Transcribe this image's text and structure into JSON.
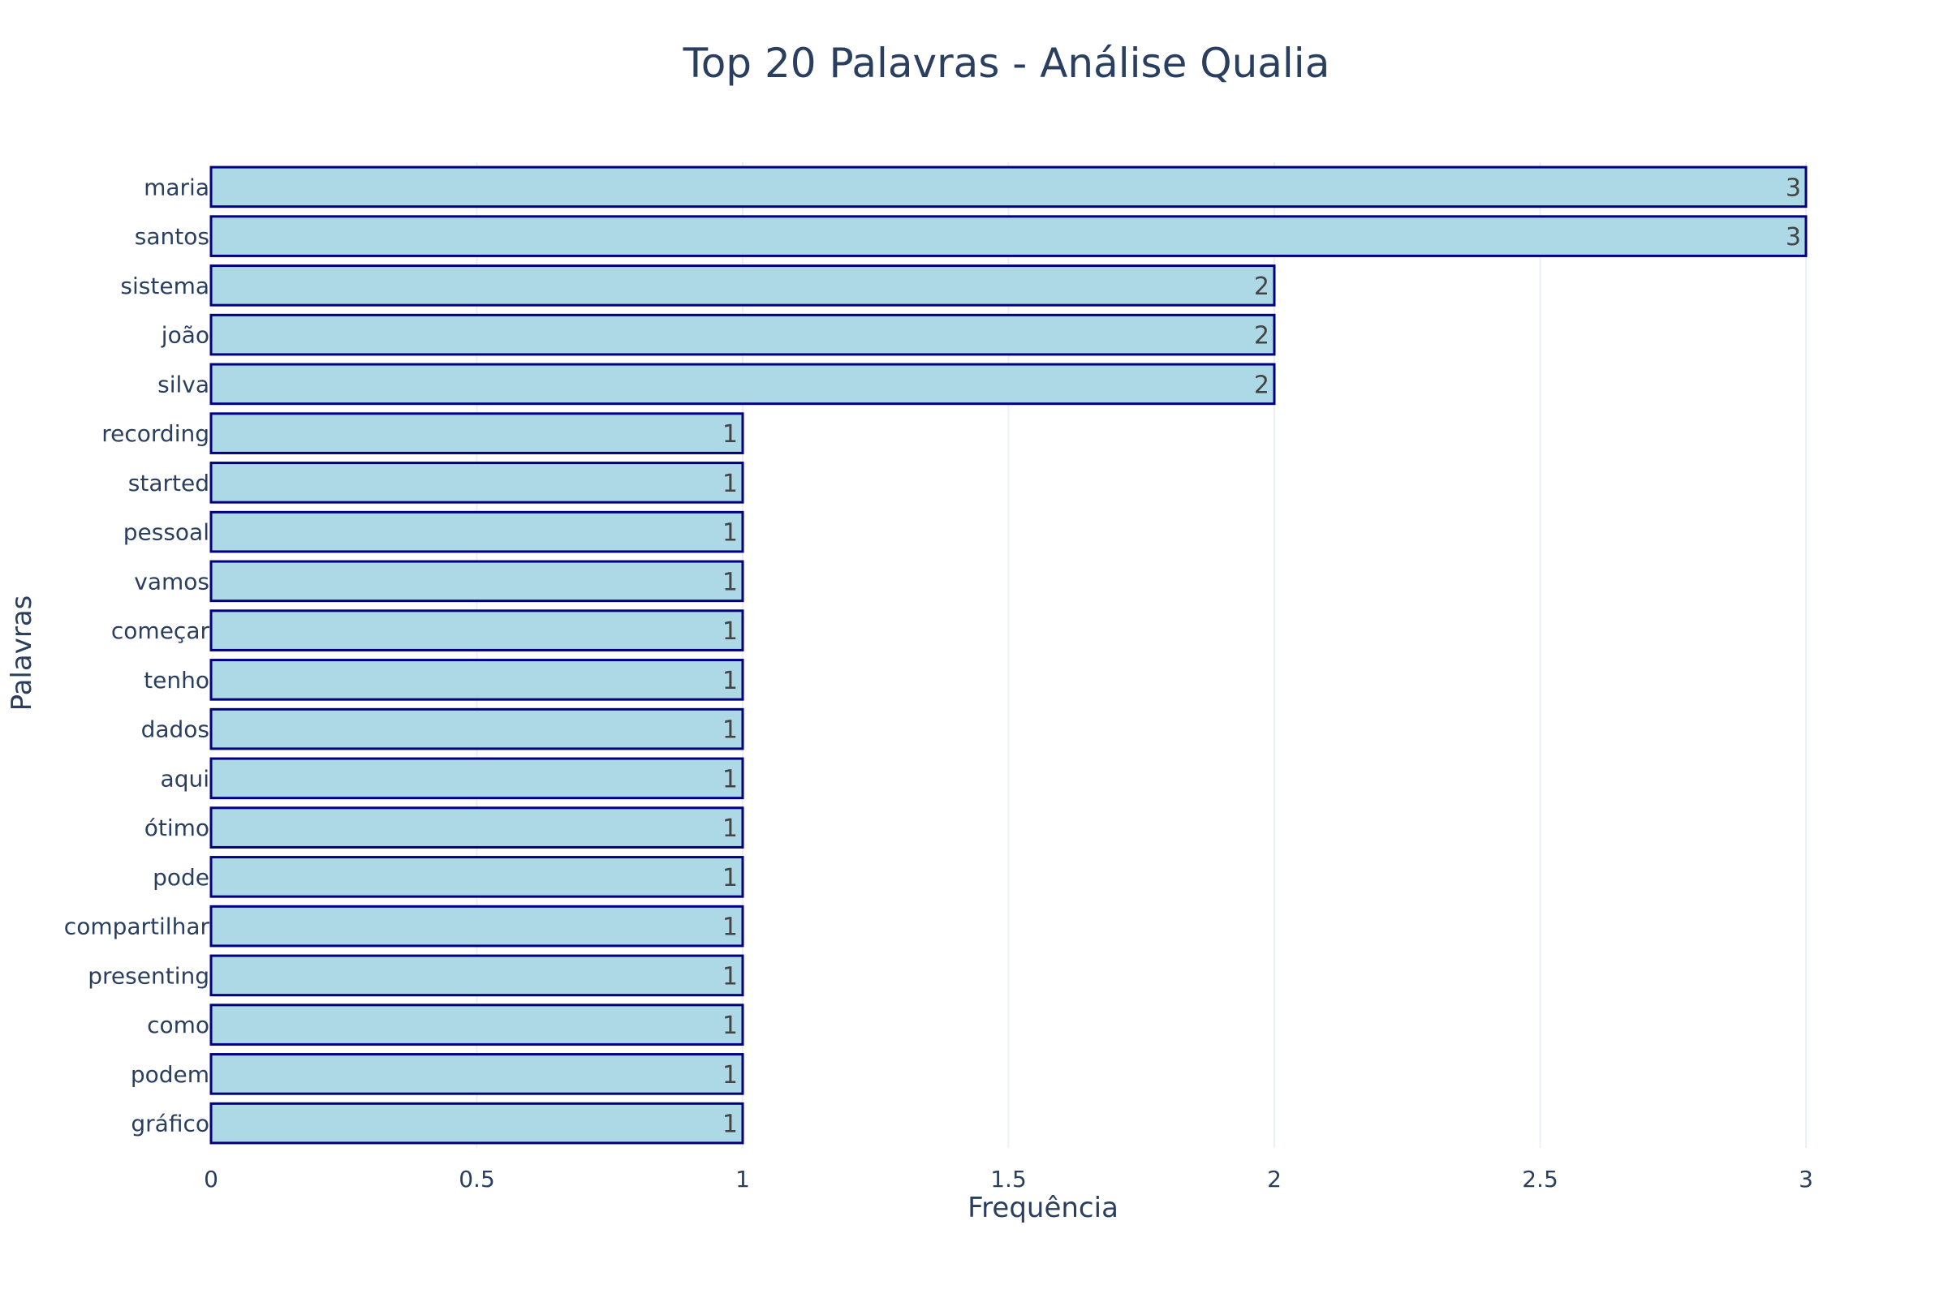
{
  "chart_data": {
    "type": "bar",
    "orientation": "horizontal",
    "title": "Top 20 Palavras - Análise Qualia",
    "xlabel": "Frequência",
    "ylabel": "Palavras",
    "xlim": [
      0,
      3
    ],
    "x_ticks": [
      "0",
      "0.5",
      "1",
      "1.5",
      "2",
      "2.5",
      "3"
    ],
    "x_tick_values": [
      0,
      0.5,
      1,
      1.5,
      2,
      2.5,
      3
    ],
    "grid": "vertical",
    "legend": "none",
    "categories": [
      "maria",
      "santos",
      "sistema",
      "joão",
      "silva",
      "recording",
      "started",
      "pessoal",
      "vamos",
      "começar",
      "tenho",
      "dados",
      "aqui",
      "ótimo",
      "pode",
      "compartilhar",
      "presenting",
      "como",
      "podem",
      "gráfico"
    ],
    "values": [
      3,
      3,
      2,
      2,
      2,
      1,
      1,
      1,
      1,
      1,
      1,
      1,
      1,
      1,
      1,
      1,
      1,
      1,
      1,
      1
    ],
    "value_labels": [
      "3",
      "3",
      "2",
      "2",
      "2",
      "1",
      "1",
      "1",
      "1",
      "1",
      "1",
      "1",
      "1",
      "1",
      "1",
      "1",
      "1",
      "1",
      "1",
      "1"
    ],
    "colors": {
      "bar_fill": "#add8e6",
      "bar_stroke": "#000080",
      "grid": "#ebf0f8",
      "text": "#2a3f5f",
      "value_text": "#444444"
    }
  }
}
